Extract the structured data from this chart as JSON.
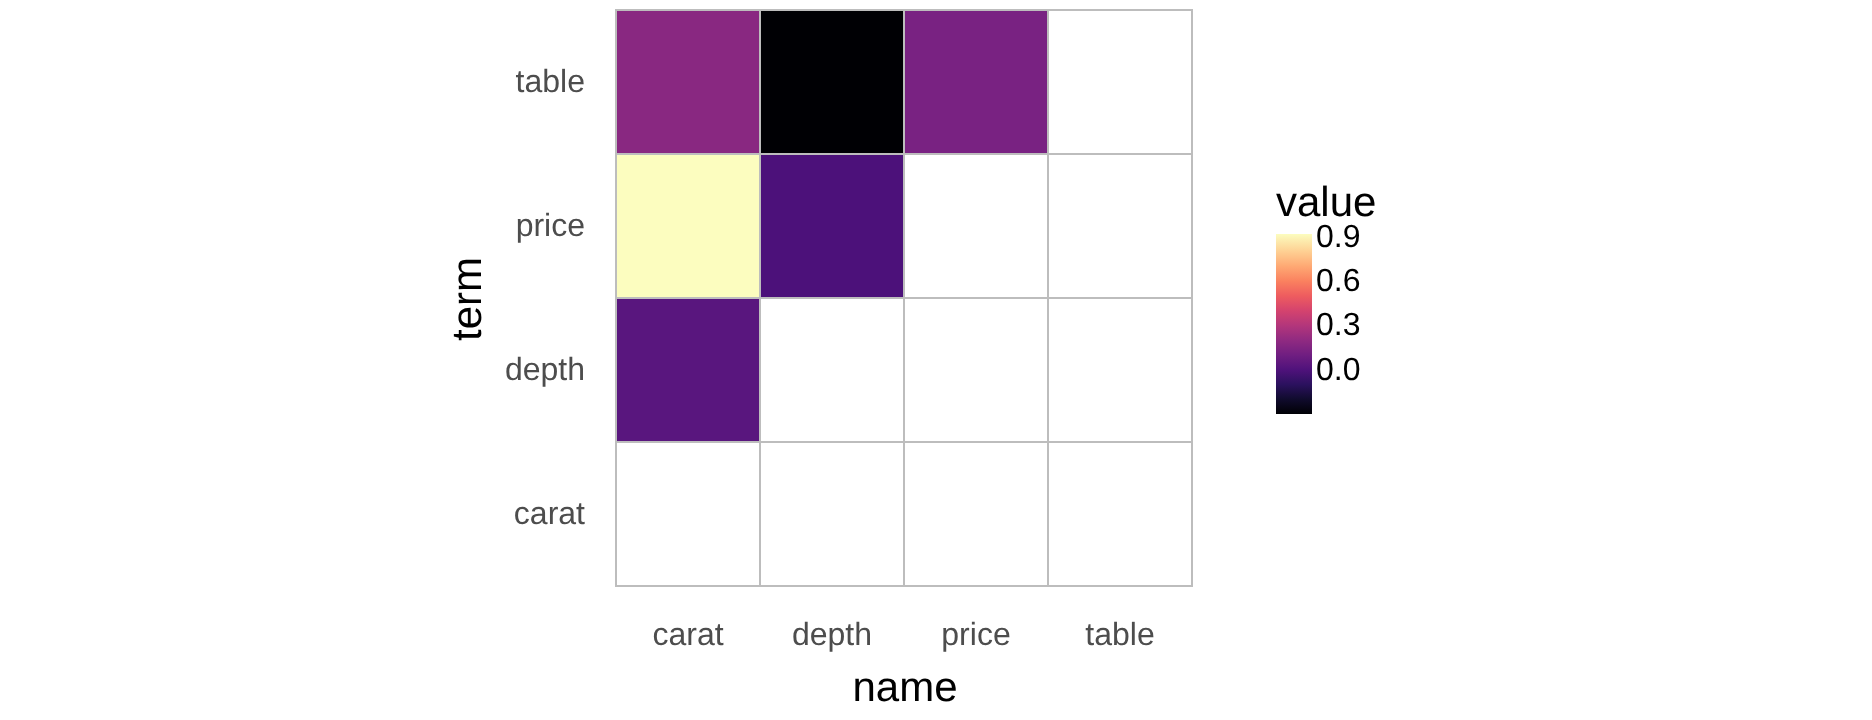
{
  "chart_data": {
    "type": "heatmap",
    "xlabel": "name",
    "ylabel": "term",
    "legend_title": "value",
    "categories": [
      "carat",
      "depth",
      "price",
      "table"
    ],
    "y_categories": [
      "table",
      "price",
      "depth",
      "carat"
    ],
    "cells": [
      [
        0.18,
        -0.3,
        0.13,
        null
      ],
      [
        0.92,
        -0.01,
        null,
        null
      ],
      [
        0.03,
        null,
        null,
        null
      ],
      [
        null,
        null,
        null,
        null
      ]
    ],
    "clim": [
      -0.3,
      0.92
    ],
    "cticks": [
      {
        "value": 0,
        "label": "0.0"
      },
      0.3,
      0.6,
      0.9
    ]
  }
}
